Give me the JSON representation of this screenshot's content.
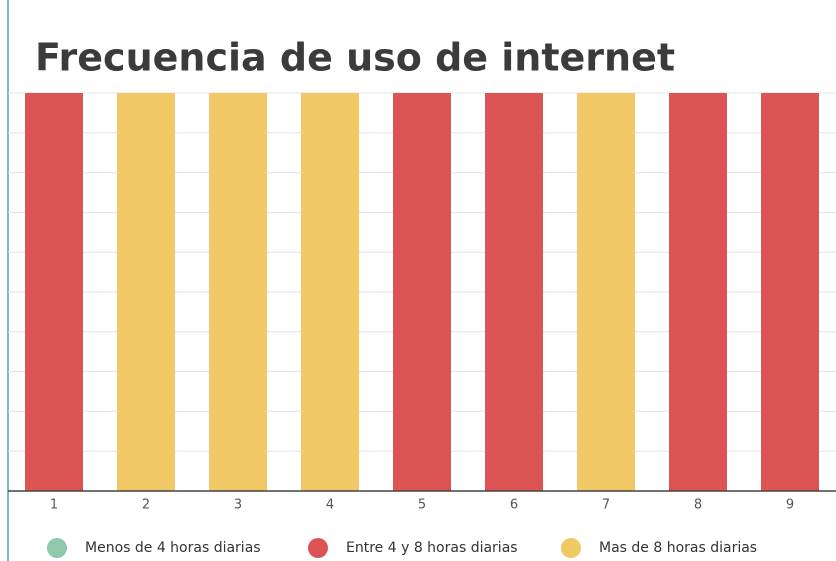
{
  "chart_data": {
    "type": "bar",
    "title": "Frecuencia de uso de internet",
    "categories": [
      "1",
      "2",
      "3",
      "4",
      "5",
      "6",
      "7",
      "8",
      "9"
    ],
    "series": [
      {
        "name": "Menos de 4 horas diarias",
        "color": "#8fc9a9",
        "values": [
          null,
          null,
          null,
          null,
          null,
          null,
          null,
          null,
          null
        ]
      },
      {
        "name": "Entre 4 y 8 horas diarias",
        "color": "#dc5354",
        "values": [
          10,
          null,
          null,
          null,
          10,
          10,
          null,
          10,
          10
        ]
      },
      {
        "name": "Mas de 8 horas diarias",
        "color": "#f0c865",
        "values": [
          null,
          10,
          10,
          10,
          null,
          null,
          10,
          null,
          null
        ]
      }
    ],
    "ylim": [
      0,
      10
    ],
    "yticks": [
      0,
      1,
      2,
      3,
      4,
      5,
      6,
      7,
      8,
      9,
      10
    ],
    "grid": true,
    "legend": "bottom"
  }
}
